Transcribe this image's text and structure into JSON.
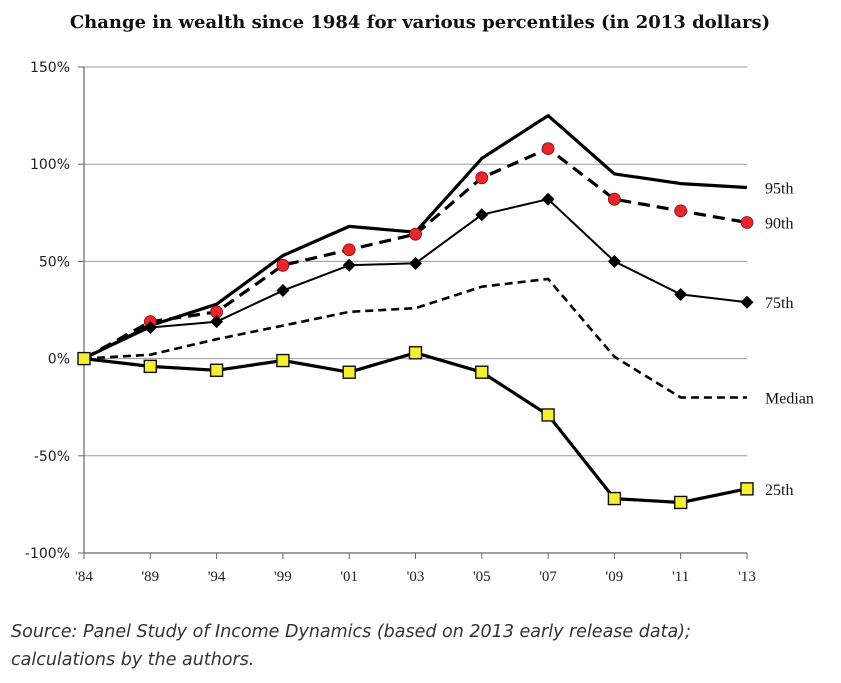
{
  "chart_data": {
    "type": "line",
    "title": "Change in wealth since 1984 for various percentiles (in 2013 dollars)",
    "categories": [
      "'84",
      "'89",
      "'94",
      "'99",
      "'01",
      "'03",
      "'05",
      "'07",
      "'09",
      "'11",
      "'13"
    ],
    "y_ticks": [
      "150%",
      "100%",
      "50%",
      "0%",
      "-50%",
      "-100%"
    ],
    "ylim": [
      -100,
      150
    ],
    "y_unit": "%",
    "grid": "horizontal",
    "series": [
      {
        "name": "95th",
        "style": "solid-thick",
        "marker": "none",
        "color": "#000000",
        "values": [
          0,
          17,
          28,
          53,
          68,
          65,
          103,
          125,
          95,
          90,
          88
        ]
      },
      {
        "name": "90th",
        "style": "dashed-thick",
        "marker": "circle",
        "color": "#000000",
        "marker_color": "#e8262b",
        "values": [
          0,
          19,
          24,
          48,
          56,
          64,
          93,
          108,
          82,
          76,
          70
        ]
      },
      {
        "name": "75th",
        "style": "solid",
        "marker": "diamond",
        "color": "#000000",
        "marker_color": "#000000",
        "values": [
          0,
          16,
          19,
          35,
          48,
          49,
          74,
          82,
          50,
          33,
          29
        ]
      },
      {
        "name": "Median",
        "style": "dashed",
        "marker": "none",
        "color": "#000000",
        "values": [
          0,
          2,
          10,
          17,
          24,
          26,
          37,
          41,
          1,
          -20,
          -20
        ]
      },
      {
        "name": "25th",
        "style": "solid-thick",
        "marker": "square",
        "color": "#000000",
        "marker_color": "#f5ee31",
        "values": [
          0,
          -4,
          -6,
          -1,
          -7,
          3,
          -7,
          -29,
          -72,
          -74,
          -67
        ]
      }
    ]
  },
  "source_lines": [
    "Source: Panel Study of Income Dynamics (based on 2013 early release data);",
    "calculations by the authors."
  ]
}
